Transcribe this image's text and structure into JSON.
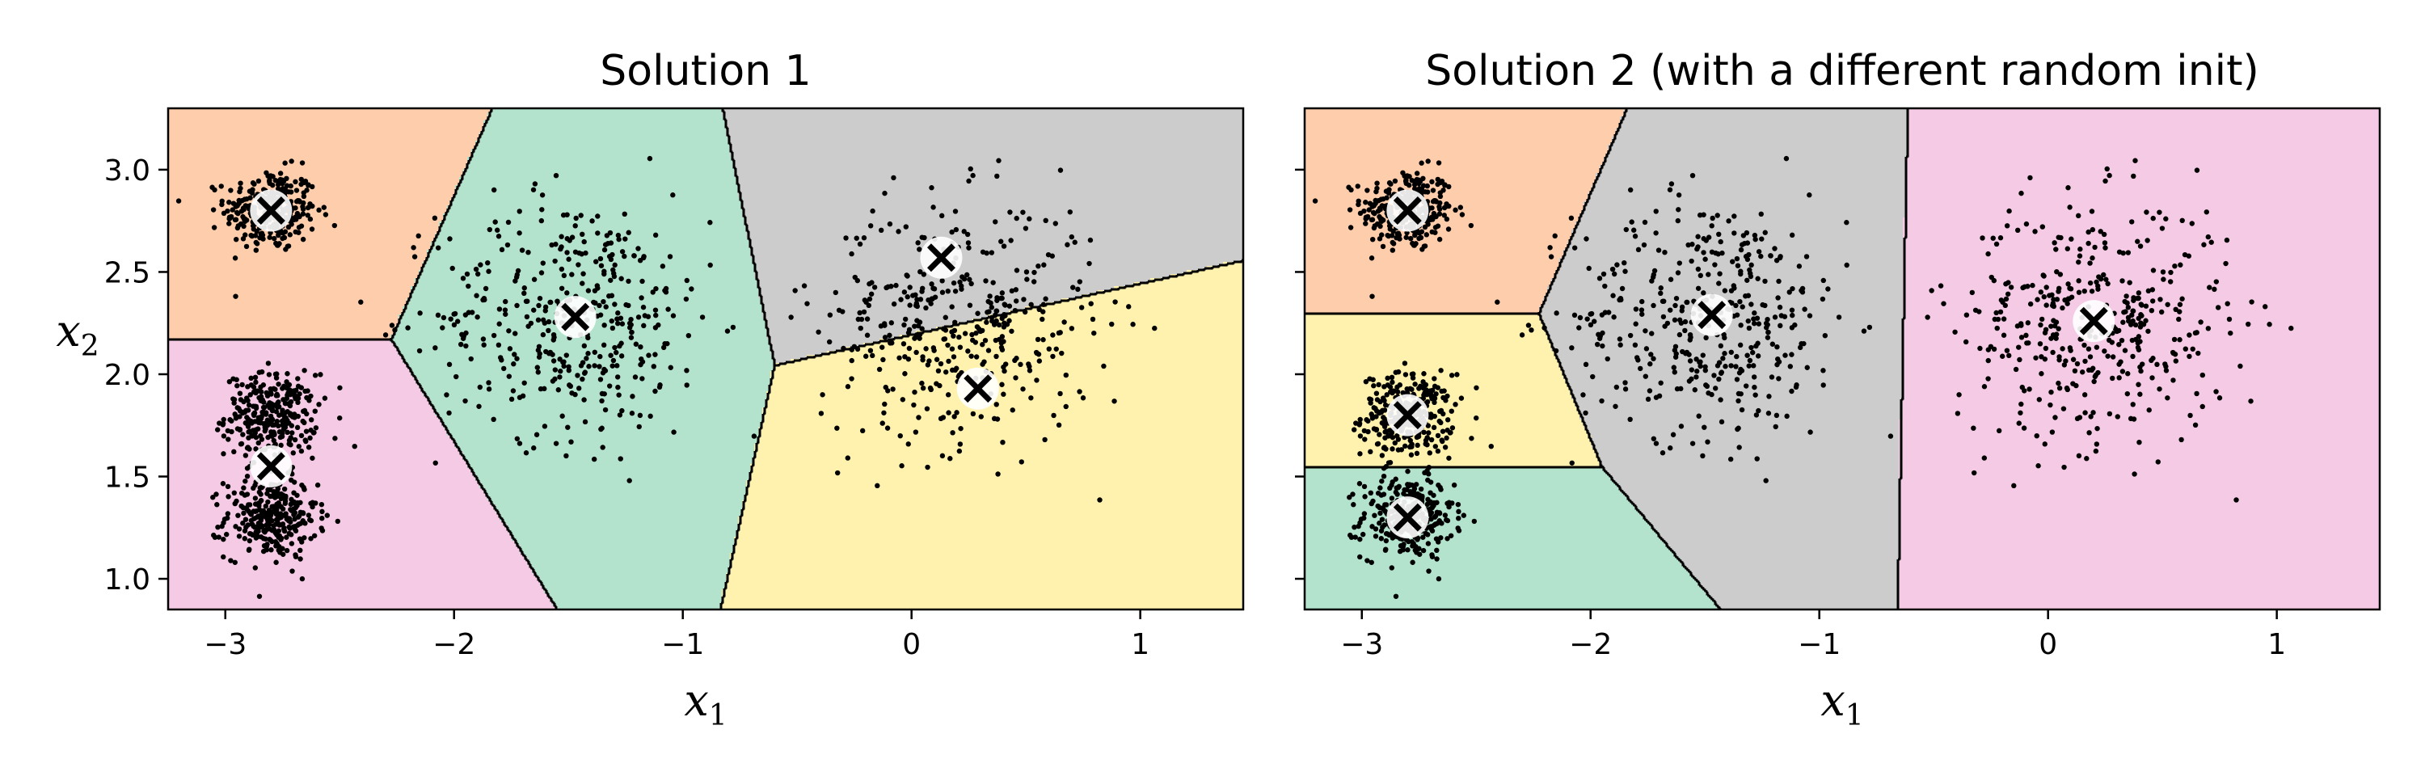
{
  "chart_data": [
    {
      "type": "scatter",
      "title": "Solution 1",
      "xlabel": "x1",
      "ylabel": "x2",
      "xlim": [
        -3.25,
        1.45
      ],
      "ylim": [
        0.85,
        3.3
      ],
      "x_ticks": [
        "−3",
        "−2",
        "−1",
        "0",
        "1"
      ],
      "y_ticks": [
        "1.0",
        "1.5",
        "2.0",
        "2.5",
        "3.0"
      ],
      "centroids": [
        {
          "x": -2.8,
          "y": 2.8
        },
        {
          "x": -2.8,
          "y": 1.55
        },
        {
          "x": -1.47,
          "y": 2.28
        },
        {
          "x": 0.13,
          "y": 2.57
        },
        {
          "x": 0.29,
          "y": 1.93
        }
      ],
      "regions": [
        {
          "color": "#fdcdac"
        },
        {
          "color": "#f4cae4"
        },
        {
          "color": "#b3e2cd"
        },
        {
          "color": "#cccccc"
        },
        {
          "color": "#fff2ae"
        }
      ],
      "blobs": [
        {
          "x": -2.8,
          "y": 2.8,
          "sd": 0.1,
          "n": 300
        },
        {
          "x": -2.8,
          "y": 1.8,
          "sd": 0.1,
          "n": 300
        },
        {
          "x": -2.8,
          "y": 1.3,
          "sd": 0.1,
          "n": 300
        },
        {
          "x": -1.47,
          "y": 2.28,
          "sd": 0.3,
          "n": 400
        },
        {
          "x": 0.2,
          "y": 2.25,
          "sd": 0.3,
          "n": 400
        }
      ],
      "grid": false,
      "legend": "none"
    },
    {
      "type": "scatter",
      "title": "Solution 2 (with a different random init)",
      "xlabel": "x1",
      "ylabel": "",
      "xlim": [
        -3.25,
        1.45
      ],
      "ylim": [
        0.85,
        3.3
      ],
      "x_ticks": [
        "−3",
        "−2",
        "−1",
        "0",
        "1"
      ],
      "y_ticks": [],
      "centroids": [
        {
          "x": -2.8,
          "y": 2.8
        },
        {
          "x": -2.8,
          "y": 1.8
        },
        {
          "x": -2.8,
          "y": 1.3
        },
        {
          "x": -1.47,
          "y": 2.29
        },
        {
          "x": 0.2,
          "y": 2.26
        }
      ],
      "regions": [
        {
          "color": "#fdcdac"
        },
        {
          "color": "#fff2ae"
        },
        {
          "color": "#b3e2cd"
        },
        {
          "color": "#cccccc"
        },
        {
          "color": "#f4cae4"
        }
      ],
      "blobs": [
        {
          "x": -2.8,
          "y": 2.8,
          "sd": 0.1,
          "n": 300
        },
        {
          "x": -2.8,
          "y": 1.8,
          "sd": 0.1,
          "n": 300
        },
        {
          "x": -2.8,
          "y": 1.3,
          "sd": 0.1,
          "n": 300
        },
        {
          "x": -1.47,
          "y": 2.28,
          "sd": 0.3,
          "n": 400
        },
        {
          "x": 0.2,
          "y": 2.25,
          "sd": 0.3,
          "n": 400
        }
      ],
      "grid": false,
      "legend": "none"
    }
  ]
}
